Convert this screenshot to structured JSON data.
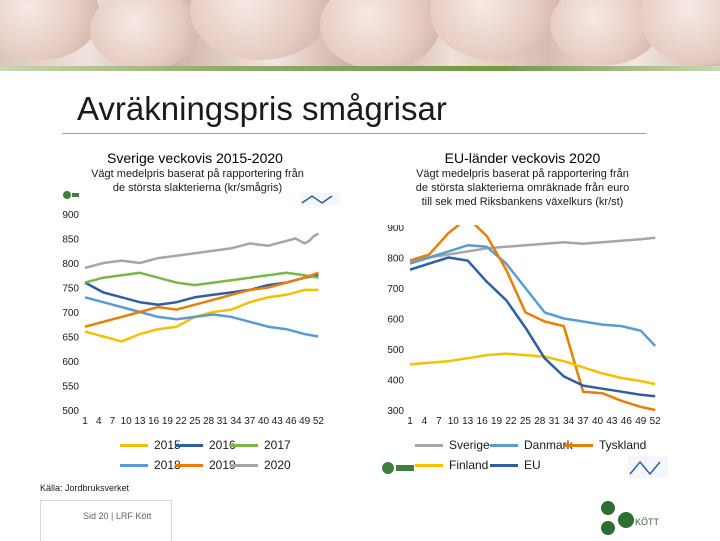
{
  "page": {
    "title": "Avräkningspris smågrisar",
    "source": "Källa: Jordbruksverket",
    "footer": "Sid 20 | LRF Kött",
    "logo_text": "KÖTT"
  },
  "colors": {
    "s2015": "#f5c000",
    "s2016": "#2e5fa3",
    "s2017": "#7ab648",
    "s2018": "#5b9bd5",
    "s2019": "#e87e04",
    "s2020": "#a6a6a6",
    "sverige": "#a6a6a6",
    "danmark": "#5b9bd5",
    "tyskland": "#e87e04",
    "finland": "#f5c000",
    "eu": "#2e5fa3"
  },
  "chart_data": [
    {
      "type": "line",
      "title": "Sverige veckovis 2015-2020",
      "subtitle": "Vägt medelpris baserat på rapportering från de största slakterierna (kr/smågris)",
      "ylim": [
        500,
        900
      ],
      "yticks": [
        500,
        550,
        600,
        650,
        700,
        750,
        800,
        850,
        900
      ],
      "xlim": [
        1,
        53
      ],
      "xtick_labels": [
        "1",
        "4",
        "7",
        "10",
        "13",
        "16",
        "19",
        "22",
        "25",
        "28",
        "31",
        "34",
        "37",
        "40",
        "43",
        "46",
        "49",
        "52"
      ],
      "legend": [
        "2015",
        "2016",
        "2017",
        "2018",
        "2019",
        "2020"
      ],
      "series": [
        {
          "name": "2015",
          "x": [
            1,
            5,
            9,
            13,
            17,
            21,
            25,
            29,
            33,
            37,
            41,
            45,
            49,
            52
          ],
          "values": [
            660,
            650,
            640,
            655,
            665,
            670,
            690,
            700,
            705,
            720,
            730,
            735,
            745,
            745
          ]
        },
        {
          "name": "2016",
          "x": [
            1,
            5,
            9,
            13,
            17,
            21,
            25,
            29,
            33,
            37,
            41,
            45,
            49,
            52
          ],
          "values": [
            760,
            740,
            730,
            720,
            715,
            720,
            730,
            735,
            740,
            745,
            755,
            760,
            770,
            775
          ]
        },
        {
          "name": "2017",
          "x": [
            1,
            5,
            9,
            13,
            17,
            21,
            25,
            29,
            33,
            37,
            41,
            45,
            49,
            52
          ],
          "values": [
            760,
            770,
            775,
            780,
            770,
            760,
            755,
            760,
            765,
            770,
            775,
            780,
            775,
            770
          ]
        },
        {
          "name": "2018",
          "x": [
            1,
            5,
            9,
            13,
            17,
            21,
            25,
            29,
            33,
            37,
            41,
            45,
            49,
            52
          ],
          "values": [
            730,
            720,
            710,
            700,
            690,
            685,
            690,
            695,
            690,
            680,
            670,
            665,
            655,
            650
          ]
        },
        {
          "name": "2019",
          "x": [
            1,
            5,
            9,
            13,
            17,
            21,
            25,
            29,
            33,
            37,
            41,
            45,
            49,
            52
          ],
          "values": [
            670,
            680,
            690,
            700,
            710,
            705,
            715,
            725,
            735,
            745,
            750,
            760,
            770,
            780
          ]
        },
        {
          "name": "2020",
          "x": [
            1,
            5,
            9,
            13,
            17,
            21,
            25,
            29,
            33,
            37,
            41,
            45,
            47,
            49,
            50,
            51,
            52
          ],
          "values": [
            790,
            800,
            805,
            800,
            810,
            815,
            820,
            825,
            830,
            840,
            835,
            845,
            850,
            840,
            845,
            855,
            860
          ]
        }
      ]
    },
    {
      "type": "line",
      "title": "EU-länder veckovis 2020",
      "subtitle": "Vägt medelpris baserat på rapportering från de största slakterierna omräknade från euro till sek med Riksbankens växelkurs (kr/st)",
      "ylim": [
        300,
        900
      ],
      "yticks": [
        300,
        400,
        500,
        600,
        700,
        800,
        900
      ],
      "xlim": [
        1,
        53
      ],
      "xtick_labels": [
        "1",
        "4",
        "7",
        "10",
        "13",
        "16",
        "19",
        "22",
        "25",
        "28",
        "31",
        "34",
        "37",
        "40",
        "43",
        "46",
        "49",
        "52"
      ],
      "legend": [
        "Sverige",
        "Danmark",
        "Tyskland",
        "Finland",
        "EU"
      ],
      "series": [
        {
          "name": "Sverige",
          "x": [
            1,
            5,
            9,
            13,
            17,
            21,
            25,
            29,
            33,
            37,
            41,
            45,
            49,
            52
          ],
          "values": [
            790,
            800,
            810,
            820,
            830,
            835,
            840,
            845,
            850,
            845,
            850,
            855,
            860,
            865
          ]
        },
        {
          "name": "Danmark",
          "x": [
            1,
            5,
            9,
            13,
            17,
            21,
            25,
            29,
            33,
            37,
            41,
            45,
            49,
            52
          ],
          "values": [
            780,
            800,
            820,
            840,
            835,
            780,
            700,
            620,
            600,
            590,
            580,
            575,
            560,
            510
          ]
        },
        {
          "name": "Tyskland",
          "x": [
            1,
            5,
            9,
            13,
            17,
            21,
            25,
            29,
            33,
            37,
            41,
            45,
            49,
            52
          ],
          "values": [
            790,
            810,
            880,
            930,
            870,
            760,
            620,
            590,
            575,
            360,
            355,
            330,
            310,
            300
          ]
        },
        {
          "name": "Finland",
          "x": [
            1,
            5,
            9,
            13,
            17,
            21,
            25,
            29,
            33,
            37,
            41,
            45,
            49,
            52
          ],
          "values": [
            450,
            455,
            460,
            470,
            480,
            485,
            480,
            475,
            460,
            440,
            420,
            405,
            395,
            385
          ]
        },
        {
          "name": "EU",
          "x": [
            1,
            5,
            9,
            13,
            17,
            21,
            25,
            29,
            33,
            37,
            41,
            45,
            49,
            52
          ],
          "values": [
            760,
            780,
            800,
            790,
            720,
            660,
            570,
            470,
            410,
            380,
            370,
            360,
            350,
            345
          ]
        }
      ]
    }
  ]
}
